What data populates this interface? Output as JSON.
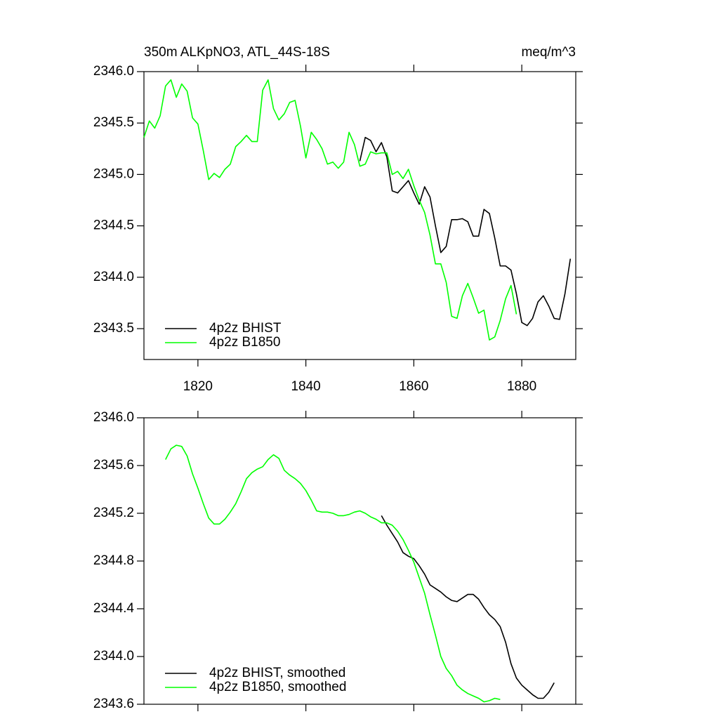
{
  "chart_data": [
    {
      "type": "line",
      "title": "350m ALKpNO3, ATL_44S-18S",
      "units": "meq/m^3",
      "x": [
        1810,
        1811,
        1812,
        1813,
        1814,
        1815,
        1816,
        1817,
        1818,
        1819,
        1820,
        1821,
        1822,
        1823,
        1824,
        1825,
        1826,
        1827,
        1828,
        1829,
        1830,
        1831,
        1832,
        1833,
        1834,
        1835,
        1836,
        1837,
        1838,
        1839,
        1840,
        1841,
        1842,
        1843,
        1844,
        1845,
        1846,
        1847,
        1848,
        1849,
        1850,
        1851,
        1852,
        1853,
        1854,
        1855,
        1856,
        1857,
        1858,
        1859,
        1860,
        1861,
        1862,
        1863,
        1864,
        1865,
        1866,
        1867,
        1868,
        1869,
        1870,
        1871,
        1872,
        1873,
        1874,
        1875,
        1876,
        1877,
        1878,
        1879,
        1880,
        1881,
        1882,
        1883,
        1884,
        1885,
        1886,
        1887,
        1888,
        1889
      ],
      "series": [
        {
          "name": "4p2z BHIST",
          "color": "#000000",
          "values": [
            null,
            null,
            null,
            null,
            null,
            null,
            null,
            null,
            null,
            null,
            null,
            null,
            null,
            null,
            null,
            null,
            null,
            null,
            null,
            null,
            null,
            null,
            null,
            null,
            null,
            null,
            null,
            null,
            null,
            null,
            null,
            null,
            null,
            null,
            null,
            null,
            null,
            null,
            null,
            null,
            2345.13,
            2345.36,
            2345.33,
            2345.22,
            2345.31,
            2345.17,
            2344.84,
            2344.82,
            2344.88,
            2344.94,
            2344.82,
            2344.71,
            2344.88,
            2344.78,
            2344.5,
            2344.24,
            2344.3,
            2344.56,
            2344.56,
            2344.57,
            2344.54,
            2344.4,
            2344.4,
            2344.66,
            2344.62,
            2344.38,
            2344.11,
            2344.11,
            2344.07,
            2343.84,
            2343.56,
            2343.53,
            2343.6,
            2343.76,
            2343.82,
            2343.72,
            2343.6,
            2343.59,
            2343.84,
            2344.18
          ]
        },
        {
          "name": "4p2z B1850",
          "color": "#00ff00",
          "values": [
            2345.36,
            2345.52,
            2345.45,
            2345.57,
            2345.86,
            2345.92,
            2345.75,
            2345.88,
            2345.81,
            2345.55,
            2345.49,
            2345.23,
            2344.95,
            2345.01,
            2344.97,
            2345.05,
            2345.1,
            2345.27,
            2345.32,
            2345.38,
            2345.32,
            2345.32,
            2345.82,
            2345.92,
            2345.64,
            2345.53,
            2345.59,
            2345.7,
            2345.72,
            2345.47,
            2345.16,
            2345.41,
            2345.34,
            2345.25,
            2345.1,
            2345.12,
            2345.06,
            2345.12,
            2345.41,
            2345.29,
            2345.08,
            2345.1,
            2345.22,
            2345.2,
            2345.21,
            2345.21,
            2345.0,
            2345.03,
            2344.96,
            2345.05,
            2344.89,
            2344.75,
            2344.63,
            2344.41,
            2344.13,
            2344.13,
            2343.95,
            2343.62,
            2343.6,
            2343.82,
            2343.94,
            2343.8,
            2343.65,
            2343.68,
            2343.39,
            2343.42,
            2343.58,
            2343.79,
            2343.92,
            2343.64,
            null,
            null,
            null,
            null,
            null,
            null,
            null,
            null,
            null,
            null
          ]
        }
      ],
      "xlim": [
        1810,
        1890
      ],
      "xticks": [
        1820,
        1840,
        1860,
        1880
      ],
      "ylim": [
        2343.2,
        2346.0
      ],
      "yticks": [
        {
          "value": 2346.0,
          "label": "2346.0"
        },
        2345.5,
        {
          "value": 2345.0,
          "label": "2345.0"
        },
        2344.5,
        {
          "value": 2344.0,
          "label": "2344.0"
        },
        2343.5
      ],
      "legend": "lower left"
    },
    {
      "type": "line",
      "x": [
        1814,
        1815,
        1816,
        1817,
        1818,
        1819,
        1820,
        1821,
        1822,
        1823,
        1824,
        1825,
        1826,
        1827,
        1828,
        1829,
        1830,
        1831,
        1832,
        1833,
        1834,
        1835,
        1836,
        1837,
        1838,
        1839,
        1840,
        1841,
        1842,
        1843,
        1844,
        1845,
        1846,
        1847,
        1848,
        1849,
        1850,
        1851,
        1852,
        1853,
        1854,
        1855,
        1856,
        1857,
        1858,
        1859,
        1860,
        1861,
        1862,
        1863,
        1864,
        1865,
        1866,
        1867,
        1868,
        1869,
        1870,
        1871,
        1872,
        1873,
        1874,
        1875,
        1876,
        1877,
        1878,
        1879,
        1880,
        1881,
        1882,
        1883,
        1884,
        1885,
        1886
      ],
      "series": [
        {
          "name": "4p2z BHIST, smoothed",
          "color": "#000000",
          "values": [
            null,
            null,
            null,
            null,
            null,
            null,
            null,
            null,
            null,
            null,
            null,
            null,
            null,
            null,
            null,
            null,
            null,
            null,
            null,
            null,
            null,
            null,
            null,
            null,
            null,
            null,
            null,
            null,
            null,
            null,
            null,
            null,
            null,
            null,
            null,
            null,
            null,
            null,
            null,
            null,
            2345.18,
            2345.1,
            2345.03,
            2344.96,
            2344.87,
            2344.84,
            2344.82,
            2344.76,
            2344.69,
            2344.6,
            2344.57,
            2344.54,
            2344.5,
            2344.47,
            2344.46,
            2344.49,
            2344.52,
            2344.52,
            2344.48,
            2344.41,
            2344.35,
            2344.31,
            2344.25,
            2344.12,
            2343.94,
            2343.82,
            2343.76,
            2343.72,
            2343.68,
            2343.65,
            2343.65,
            2343.7,
            2343.78
          ]
        },
        {
          "name": "4p2z B1850, smoothed",
          "color": "#00ff00",
          "values": [
            2345.65,
            2345.74,
            2345.77,
            2345.76,
            2345.68,
            2345.53,
            2345.41,
            2345.28,
            2345.16,
            2345.11,
            2345.11,
            2345.15,
            2345.21,
            2345.28,
            2345.38,
            2345.49,
            2345.54,
            2345.57,
            2345.59,
            2345.65,
            2345.69,
            2345.66,
            2345.56,
            2345.52,
            2345.49,
            2345.45,
            2345.39,
            2345.31,
            2345.22,
            2345.21,
            2345.21,
            2345.2,
            2345.18,
            2345.18,
            2345.19,
            2345.21,
            2345.22,
            2345.2,
            2345.17,
            2345.15,
            2345.12,
            2345.12,
            2345.1,
            2345.05,
            2344.98,
            2344.89,
            2344.79,
            2344.66,
            2344.53,
            2344.35,
            2344.18,
            2344.0,
            2343.9,
            2343.84,
            2343.76,
            2343.72,
            2343.69,
            2343.67,
            2343.65,
            2343.62,
            2343.63,
            2343.65,
            2343.64,
            null,
            null,
            null,
            null,
            null,
            null,
            null,
            null,
            null,
            null
          ]
        }
      ],
      "xlim": [
        1810,
        1890
      ],
      "xticks": [
        1820,
        1840,
        1860,
        1880
      ],
      "ylim": [
        2343.6,
        2346.0
      ],
      "yticks": [
        {
          "value": 2346.0,
          "label": "2346.0"
        },
        2345.6,
        2345.2,
        2344.8,
        2344.4,
        {
          "value": 2344.0,
          "label": "2344.0"
        },
        2343.6
      ],
      "legend": "lower left"
    }
  ]
}
